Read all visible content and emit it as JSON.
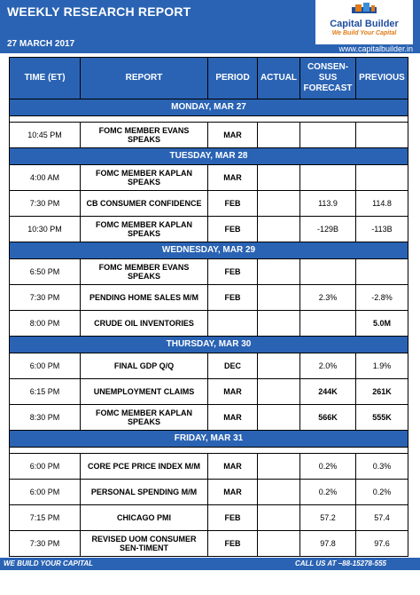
{
  "header": {
    "title": "WEEKLY RESEARCH REPORT",
    "date": "27 MARCH 2017",
    "logo_name": "Capital Builder",
    "logo_tagline": "We Build Your Capital",
    "website": "www.capitalbuilder.in"
  },
  "table": {
    "columns": {
      "time": "TIME (ET)",
      "report": "REPORT",
      "period": "PERIOD",
      "actual": "ACTUAL",
      "consensus_1": "CONSEN-",
      "consensus_2": "SUS",
      "consensus_3": "FORECAST",
      "previous": "PREVIOUS"
    },
    "days": [
      {
        "label": "MONDAY,  MAR 27"
      },
      {
        "label": "TUESDAY,  MAR 28"
      },
      {
        "label": "WEDNESDAY,  MAR 29"
      },
      {
        "label": "THURSDAY, MAR 30"
      },
      {
        "label": "FRIDAY,  MAR 31"
      }
    ],
    "rows": [
      {
        "time": "10:45 PM",
        "report": "FOMC MEMBER EVANS SPEAKS",
        "period": "MAR",
        "actual": "",
        "consensus": "",
        "previous": ""
      },
      {
        "time": "4:00 AM",
        "report": "FOMC MEMBER KAPLAN SPEAKS",
        "period": "MAR",
        "actual": "",
        "consensus": "",
        "previous": ""
      },
      {
        "time": "7:30 PM",
        "report": "CB CONSUMER CONFIDENCE",
        "period": "FEB",
        "actual": "",
        "consensus": "113.9",
        "previous": "114.8"
      },
      {
        "time": "10:30 PM",
        "report": "FOMC MEMBER KAPLAN SPEAKS",
        "period": "FEB",
        "actual": "",
        "consensus": "-129B",
        "previous": "-113B"
      },
      {
        "time": "6:50 PM",
        "report": "FOMC MEMBER EVANS SPEAKS",
        "period": "FEB",
        "actual": "",
        "consensus": "",
        "previous": ""
      },
      {
        "time": "7:30 PM",
        "report": "PENDING HOME SALES M/M",
        "period": "FEB",
        "actual": "",
        "consensus": "2.3%",
        "previous": "-2.8%"
      },
      {
        "time": "8:00 PM",
        "report": "CRUDE OIL INVENTORIES",
        "period": "",
        "actual": "",
        "consensus": "",
        "previous": "5.0M"
      },
      {
        "time": "6:00 PM",
        "report": "FINAL GDP Q/Q",
        "period": "DEC",
        "actual": "",
        "consensus": "2.0%",
        "previous": "1.9%"
      },
      {
        "time": "6:15 PM",
        "report": "UNEMPLOYMENT CLAIMS",
        "period": "MAR",
        "actual": "",
        "consensus": "244K",
        "previous": "261K"
      },
      {
        "time": "8:30 PM",
        "report": "FOMC MEMBER KAPLAN SPEAKS",
        "period": "MAR",
        "actual": "",
        "consensus": "566K",
        "previous": "555K"
      },
      {
        "time": "6:00 PM",
        "report": "CORE PCE PRICE INDEX M/M",
        "period": "MAR",
        "actual": "",
        "consensus": "0.2%",
        "previous": "0.3%"
      },
      {
        "time": "6:00 PM",
        "report": "PERSONAL SPENDING M/M",
        "period": "MAR",
        "actual": "",
        "consensus": "0.2%",
        "previous": "0.2%"
      },
      {
        "time": "7:15 PM",
        "report": "CHICAGO PMI",
        "period": "FEB",
        "actual": "",
        "consensus": "57.2",
        "previous": "57.4"
      },
      {
        "time": "7:30 PM",
        "report": "REVISED UOM CONSUMER SEN-TIMENT",
        "period": "FEB",
        "actual": "",
        "consensus": "97.8",
        "previous": "97.6"
      }
    ]
  },
  "footer": {
    "left": "WE BUILD YOUR CAPITAL",
    "right": "CALL US AT –88-15278-555"
  },
  "colors": {
    "primary": "#2a63b3",
    "logo_text": "#1f4e9e",
    "logo_tagline": "#e07b16"
  }
}
